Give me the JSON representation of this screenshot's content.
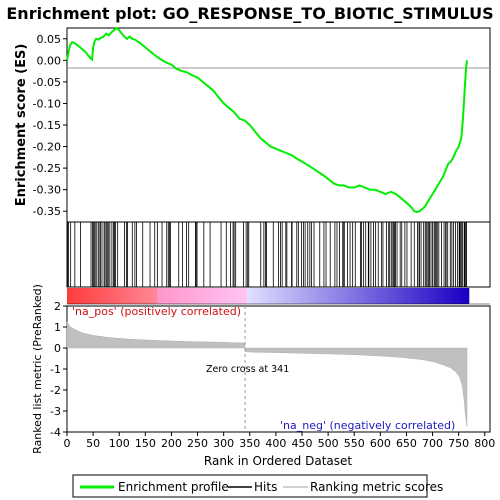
{
  "chart_data": {
    "type": "line",
    "title": "Enrichment plot: GO_RESPONSE_TO_BIOTIC_STIMULUS",
    "es_panel": {
      "ylabel": "Enrichment score (ES)",
      "ylim": [
        -0.375,
        0.075
      ],
      "yticks": [
        "0.05",
        "0.00",
        "-0.05",
        "-0.10",
        "-0.15",
        "-0.20",
        "-0.25",
        "-0.30",
        "-0.35"
      ],
      "ytick_values": [
        0.05,
        0.0,
        -0.05,
        -0.1,
        -0.15,
        -0.2,
        -0.25,
        -0.3,
        -0.35
      ],
      "series": {
        "name": "Enrichment profile",
        "color": "#00ee00",
        "x": [
          0,
          3,
          6,
          10,
          15,
          20,
          25,
          30,
          35,
          40,
          45,
          48,
          50,
          53,
          56,
          60,
          65,
          70,
          75,
          80,
          85,
          90,
          95,
          100,
          105,
          110,
          115,
          120,
          125,
          130,
          140,
          150,
          160,
          170,
          180,
          190,
          200,
          210,
          220,
          230,
          240,
          250,
          260,
          270,
          280,
          290,
          300,
          310,
          320,
          330,
          341,
          350,
          360,
          370,
          380,
          390,
          400,
          410,
          420,
          430,
          440,
          450,
          460,
          470,
          480,
          490,
          500,
          510,
          520,
          530,
          540,
          550,
          560,
          570,
          580,
          590,
          600,
          610,
          620,
          630,
          640,
          650,
          660,
          665,
          670,
          675,
          680,
          685,
          690,
          695,
          700,
          705,
          710,
          715,
          720,
          725,
          730,
          735,
          740,
          745,
          750,
          755,
          758,
          760,
          762,
          764,
          766
        ],
        "y": [
          0.0,
          0.02,
          0.035,
          0.042,
          0.04,
          0.035,
          0.03,
          0.025,
          0.02,
          0.012,
          0.005,
          0.002,
          0.03,
          0.045,
          0.05,
          0.048,
          0.052,
          0.055,
          0.062,
          0.058,
          0.065,
          0.07,
          0.075,
          0.07,
          0.062,
          0.055,
          0.05,
          0.055,
          0.05,
          0.048,
          0.04,
          0.03,
          0.02,
          0.01,
          0.002,
          -0.005,
          -0.01,
          -0.02,
          -0.025,
          -0.028,
          -0.035,
          -0.04,
          -0.05,
          -0.06,
          -0.07,
          -0.085,
          -0.1,
          -0.11,
          -0.12,
          -0.135,
          -0.14,
          -0.15,
          -0.165,
          -0.18,
          -0.19,
          -0.2,
          -0.205,
          -0.21,
          -0.215,
          -0.22,
          -0.228,
          -0.235,
          -0.242,
          -0.25,
          -0.258,
          -0.266,
          -0.275,
          -0.285,
          -0.29,
          -0.29,
          -0.295,
          -0.295,
          -0.29,
          -0.295,
          -0.3,
          -0.3,
          -0.305,
          -0.31,
          -0.305,
          -0.31,
          -0.32,
          -0.33,
          -0.342,
          -0.35,
          -0.352,
          -0.35,
          -0.345,
          -0.34,
          -0.33,
          -0.32,
          -0.31,
          -0.3,
          -0.29,
          -0.28,
          -0.27,
          -0.255,
          -0.24,
          -0.235,
          -0.225,
          -0.21,
          -0.2,
          -0.18,
          -0.14,
          -0.1,
          -0.06,
          -0.02,
          0.0
        ]
      }
    },
    "ranked_panel": {
      "ylabel": "Ranked list metric (PreRanked)",
      "ylim": [
        -4,
        2
      ],
      "yticks": [
        "2",
        "1",
        "0",
        "-1",
        "-2",
        "-3",
        "-4"
      ],
      "ytick_values": [
        2,
        1,
        0,
        -1,
        -2,
        -3,
        -4
      ],
      "series": {
        "name": "Ranking metric scores",
        "color": "#c0c0c0",
        "x": [
          0,
          5,
          10,
          20,
          30,
          50,
          80,
          120,
          170,
          230,
          300,
          340,
          341,
          360,
          400,
          450,
          500,
          550,
          600,
          640,
          680,
          700,
          720,
          735,
          745,
          752,
          757,
          760,
          763,
          766
        ],
        "y": [
          1.25,
          1.05,
          0.95,
          0.82,
          0.72,
          0.6,
          0.5,
          0.42,
          0.36,
          0.31,
          0.27,
          0.24,
          -0.18,
          -0.2,
          -0.22,
          -0.25,
          -0.28,
          -0.32,
          -0.38,
          -0.45,
          -0.55,
          -0.65,
          -0.8,
          -0.95,
          -1.15,
          -1.4,
          -1.8,
          -2.4,
          -3.2,
          -3.75
        ]
      }
    },
    "hits": [
      1,
      3,
      7,
      15,
      26,
      46,
      49,
      51,
      52,
      54,
      57,
      60,
      63,
      64,
      67,
      71,
      73,
      76,
      77,
      79,
      82,
      86,
      89,
      91,
      93,
      97,
      110,
      114,
      116,
      125,
      130,
      133,
      145,
      159,
      168,
      173,
      182,
      191,
      194,
      196,
      198,
      214,
      221,
      229,
      233,
      246,
      247,
      249,
      262,
      274,
      295,
      305,
      313,
      318,
      320,
      323,
      338,
      343,
      346,
      348,
      371,
      377,
      380,
      382,
      395,
      405,
      409,
      412,
      419,
      421,
      430,
      431,
      440,
      443,
      449,
      453,
      456,
      461,
      465,
      468,
      473,
      484,
      492,
      496,
      504,
      513,
      517,
      522,
      528,
      530,
      531,
      537,
      542,
      547,
      552,
      562,
      564,
      568,
      572,
      577,
      578,
      582,
      587,
      591,
      596,
      602,
      605,
      612,
      616,
      618,
      621,
      624,
      625,
      627,
      629,
      632,
      638,
      641,
      647,
      651,
      659,
      665,
      671,
      674,
      675,
      678,
      683,
      686,
      688,
      691,
      693,
      694,
      697,
      700,
      703,
      705,
      707,
      709,
      712,
      717,
      722,
      725,
      726,
      729,
      734,
      737,
      740,
      744,
      748,
      751,
      752,
      754,
      756,
      758,
      761,
      762,
      764,
      765
    ],
    "xaxis": {
      "label": "Rank in Ordered Dataset",
      "xlim": [
        0,
        810
      ],
      "ticks": [
        "0",
        "50",
        "100",
        "150",
        "200",
        "250",
        "300",
        "350",
        "400",
        "450",
        "500",
        "550",
        "600",
        "650",
        "700",
        "750",
        "800"
      ],
      "tick_values": [
        0,
        50,
        100,
        150,
        200,
        250,
        300,
        350,
        400,
        450,
        500,
        550,
        600,
        650,
        700,
        750,
        800
      ]
    },
    "annotations": {
      "pos_label": "'na_pos' (positively correlated)",
      "neg_label": "'na_neg' (negatively correlated)",
      "zero_cross": "Zero cross at 341",
      "zero_cross_value": 341
    },
    "legend": {
      "placement": "bottom",
      "items": [
        "Enrichment profile",
        "Hits",
        "Ranking metric scores"
      ]
    },
    "colors": {
      "profile": "#00ee00",
      "hit": "#000000",
      "metric": "#c0c0c0",
      "pos_text": "#d01010",
      "neg_text": "#2020c0",
      "pos_strong": "#ff0000",
      "neg_strong": "#2200cc"
    }
  }
}
